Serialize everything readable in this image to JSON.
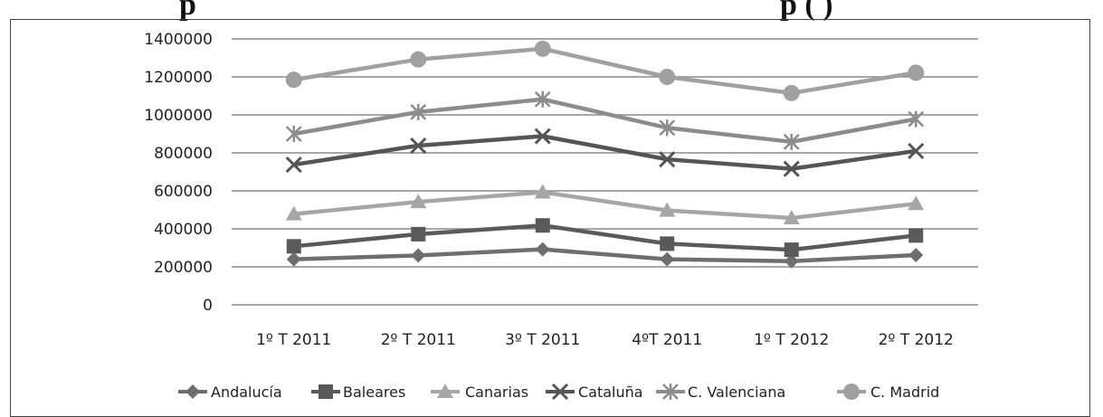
{
  "title": {
    "left": "p",
    "right": "p                (                 )"
  },
  "chart_data": {
    "type": "line",
    "categories": [
      "1º T 2011",
      "2º T 2011",
      "3º T 2011",
      "4ºT 2011",
      "1º T 2012",
      "2º T 2012"
    ],
    "ylim": [
      0,
      1400000
    ],
    "yticks": [
      "0",
      "200000",
      "400000",
      "600000",
      "800000",
      "1000000",
      "1200000",
      "1400000"
    ],
    "grid": true,
    "legend_position": "bottom",
    "series": [
      {
        "name": "Andalucía",
        "values": [
          240000,
          260000,
          292000,
          240000,
          230000,
          262000
        ],
        "color": "#6e6e6e",
        "marker": "diamond"
      },
      {
        "name": "Baleares",
        "values": [
          308000,
          372000,
          418000,
          322000,
          290000,
          365000
        ],
        "color": "#5a5a5a",
        "marker": "square"
      },
      {
        "name": "Canarias",
        "values": [
          478000,
          542000,
          593000,
          497000,
          457000,
          532000
        ],
        "color": "#a6a6a6",
        "marker": "triangle"
      },
      {
        "name": "Cataluña",
        "values": [
          738000,
          838000,
          888000,
          766000,
          716000,
          810000
        ],
        "color": "#555555",
        "marker": "x"
      },
      {
        "name": "C. Valenciana",
        "values": [
          900000,
          1015000,
          1082000,
          932000,
          858000,
          978000
        ],
        "color": "#8c8c8c",
        "marker": "star"
      },
      {
        "name": "C. Madrid",
        "values": [
          1185000,
          1292000,
          1348000,
          1200000,
          1115000,
          1222000
        ],
        "color": "#a0a0a0",
        "marker": "circle"
      }
    ]
  }
}
